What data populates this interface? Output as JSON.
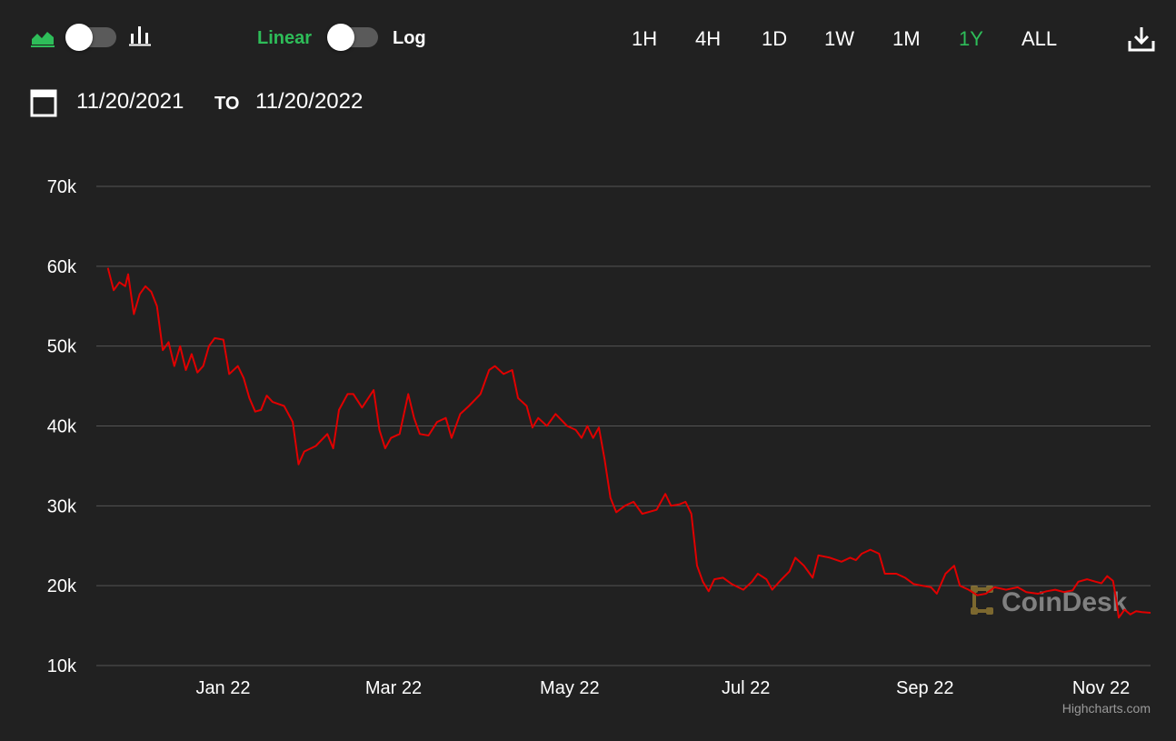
{
  "toolbar": {
    "scale_linear": "Linear",
    "scale_log": "Log",
    "ranges": [
      "1H",
      "4H",
      "1D",
      "1W",
      "1M",
      "1Y",
      "ALL"
    ],
    "active_range": "1Y"
  },
  "date_range": {
    "from": "11/20/2021",
    "separator": "TO",
    "to": "11/20/2022"
  },
  "colors": {
    "background": "#212121",
    "accent": "#2ebd59",
    "series": "#e00000",
    "grid": "#555555"
  },
  "watermark": "CoinDesk",
  "credits": "Highcharts.com",
  "chart_data": {
    "type": "line",
    "title": "",
    "xlabel": "",
    "ylabel": "",
    "scale": "linear",
    "grid": true,
    "ylim": [
      10000,
      70000
    ],
    "xlim": [
      "2021-11-20",
      "2022-11-20"
    ],
    "y_ticks": [
      {
        "value": 10000,
        "label": "10k"
      },
      {
        "value": 20000,
        "label": "20k"
      },
      {
        "value": 30000,
        "label": "30k"
      },
      {
        "value": 40000,
        "label": "40k"
      },
      {
        "value": 50000,
        "label": "50k"
      },
      {
        "value": 60000,
        "label": "60k"
      },
      {
        "value": 70000,
        "label": "70k"
      }
    ],
    "x_ticks": [
      {
        "value": "2022-01-01",
        "label": "Jan 22"
      },
      {
        "value": "2022-03-01",
        "label": "Mar 22"
      },
      {
        "value": "2022-05-01",
        "label": "May 22"
      },
      {
        "value": "2022-07-01",
        "label": "Jul 22"
      },
      {
        "value": "2022-09-01",
        "label": "Sep 22"
      },
      {
        "value": "2022-11-01",
        "label": "Nov 22"
      }
    ],
    "series": [
      {
        "points": [
          [
            "2021-11-24",
            59800
          ],
          [
            "2021-11-26",
            57000
          ],
          [
            "2021-11-28",
            58000
          ],
          [
            "2021-11-30",
            57500
          ],
          [
            "2021-12-01",
            59000
          ],
          [
            "2021-12-03",
            54000
          ],
          [
            "2021-12-05",
            56500
          ],
          [
            "2021-12-07",
            57500
          ],
          [
            "2021-12-09",
            56800
          ],
          [
            "2021-12-11",
            55000
          ],
          [
            "2021-12-13",
            49500
          ],
          [
            "2021-12-15",
            50500
          ],
          [
            "2021-12-17",
            47500
          ],
          [
            "2021-12-19",
            50000
          ],
          [
            "2021-12-21",
            47000
          ],
          [
            "2021-12-23",
            49000
          ],
          [
            "2021-12-25",
            46700
          ],
          [
            "2021-12-27",
            47500
          ],
          [
            "2021-12-29",
            50000
          ],
          [
            "2021-12-31",
            51000
          ],
          [
            "2022-01-03",
            50800
          ],
          [
            "2022-01-05",
            46500
          ],
          [
            "2022-01-08",
            47500
          ],
          [
            "2022-01-10",
            46000
          ],
          [
            "2022-01-12",
            43500
          ],
          [
            "2022-01-14",
            41800
          ],
          [
            "2022-01-16",
            42000
          ],
          [
            "2022-01-18",
            43800
          ],
          [
            "2022-01-20",
            43000
          ],
          [
            "2022-01-24",
            42500
          ],
          [
            "2022-01-27",
            40500
          ],
          [
            "2022-01-29",
            35200
          ],
          [
            "2022-01-31",
            36800
          ],
          [
            "2022-02-04",
            37500
          ],
          [
            "2022-02-08",
            39000
          ],
          [
            "2022-02-10",
            37200
          ],
          [
            "2022-02-12",
            42000
          ],
          [
            "2022-02-15",
            44000
          ],
          [
            "2022-02-17",
            44000
          ],
          [
            "2022-02-20",
            42300
          ],
          [
            "2022-02-24",
            44500
          ],
          [
            "2022-02-26",
            39500
          ],
          [
            "2022-02-28",
            37200
          ],
          [
            "2022-03-02",
            38500
          ],
          [
            "2022-03-05",
            39000
          ],
          [
            "2022-03-08",
            44000
          ],
          [
            "2022-03-10",
            41000
          ],
          [
            "2022-03-12",
            39000
          ],
          [
            "2022-03-15",
            38800
          ],
          [
            "2022-03-18",
            40500
          ],
          [
            "2022-03-21",
            41000
          ],
          [
            "2022-03-23",
            38500
          ],
          [
            "2022-03-26",
            41500
          ],
          [
            "2022-03-29",
            42500
          ],
          [
            "2022-04-02",
            44000
          ],
          [
            "2022-04-05",
            47000
          ],
          [
            "2022-04-07",
            47500
          ],
          [
            "2022-04-10",
            46500
          ],
          [
            "2022-04-13",
            47000
          ],
          [
            "2022-04-15",
            43500
          ],
          [
            "2022-04-18",
            42500
          ],
          [
            "2022-04-20",
            39800
          ],
          [
            "2022-04-22",
            41000
          ],
          [
            "2022-04-25",
            40000
          ],
          [
            "2022-04-28",
            41500
          ],
          [
            "2022-05-02",
            40000
          ],
          [
            "2022-05-05",
            39500
          ],
          [
            "2022-05-07",
            38500
          ],
          [
            "2022-05-09",
            40000
          ],
          [
            "2022-05-11",
            38500
          ],
          [
            "2022-05-13",
            39800
          ],
          [
            "2022-05-15",
            35800
          ],
          [
            "2022-05-17",
            31000
          ],
          [
            "2022-05-19",
            29200
          ],
          [
            "2022-05-22",
            30000
          ],
          [
            "2022-05-25",
            30500
          ],
          [
            "2022-05-28",
            29000
          ],
          [
            "2022-06-02",
            29500
          ],
          [
            "2022-06-05",
            31500
          ],
          [
            "2022-06-07",
            30000
          ],
          [
            "2022-06-10",
            30200
          ],
          [
            "2022-06-12",
            30500
          ],
          [
            "2022-06-14",
            29000
          ],
          [
            "2022-06-16",
            22500
          ],
          [
            "2022-06-18",
            20500
          ],
          [
            "2022-06-20",
            19300
          ],
          [
            "2022-06-22",
            20800
          ],
          [
            "2022-06-25",
            21000
          ],
          [
            "2022-06-28",
            20200
          ],
          [
            "2022-07-02",
            19500
          ],
          [
            "2022-07-05",
            20500
          ],
          [
            "2022-07-07",
            21500
          ],
          [
            "2022-07-10",
            20800
          ],
          [
            "2022-07-12",
            19500
          ],
          [
            "2022-07-15",
            20700
          ],
          [
            "2022-07-18",
            21800
          ],
          [
            "2022-07-20",
            23500
          ],
          [
            "2022-07-23",
            22500
          ],
          [
            "2022-07-26",
            21000
          ],
          [
            "2022-07-28",
            23800
          ],
          [
            "2022-08-01",
            23500
          ],
          [
            "2022-08-05",
            23000
          ],
          [
            "2022-08-08",
            23500
          ],
          [
            "2022-08-10",
            23200
          ],
          [
            "2022-08-12",
            24000
          ],
          [
            "2022-08-15",
            24500
          ],
          [
            "2022-08-18",
            24000
          ],
          [
            "2022-08-20",
            21500
          ],
          [
            "2022-08-24",
            21500
          ],
          [
            "2022-08-27",
            21000
          ],
          [
            "2022-08-30",
            20200
          ],
          [
            "2022-09-02",
            20000
          ],
          [
            "2022-09-05",
            19800
          ],
          [
            "2022-09-07",
            19000
          ],
          [
            "2022-09-10",
            21500
          ],
          [
            "2022-09-13",
            22500
          ],
          [
            "2022-09-15",
            20000
          ],
          [
            "2022-09-18",
            19500
          ],
          [
            "2022-09-21",
            18800
          ],
          [
            "2022-09-24",
            19000
          ],
          [
            "2022-09-27",
            19800
          ],
          [
            "2022-10-01",
            19500
          ],
          [
            "2022-10-05",
            19800
          ],
          [
            "2022-10-08",
            19200
          ],
          [
            "2022-10-12",
            19000
          ],
          [
            "2022-10-15",
            19300
          ],
          [
            "2022-10-18",
            19500
          ],
          [
            "2022-10-21",
            19200
          ],
          [
            "2022-10-24",
            19400
          ],
          [
            "2022-10-26",
            20500
          ],
          [
            "2022-10-29",
            20800
          ],
          [
            "2022-11-01",
            20500
          ],
          [
            "2022-11-03",
            20300
          ],
          [
            "2022-11-05",
            21200
          ],
          [
            "2022-11-07",
            20600
          ],
          [
            "2022-11-08",
            18500
          ],
          [
            "2022-11-09",
            16000
          ],
          [
            "2022-11-11",
            17000
          ],
          [
            "2022-11-13",
            16400
          ],
          [
            "2022-11-15",
            16800
          ],
          [
            "2022-11-17",
            16700
          ],
          [
            "2022-11-20",
            16600
          ]
        ]
      }
    ]
  }
}
